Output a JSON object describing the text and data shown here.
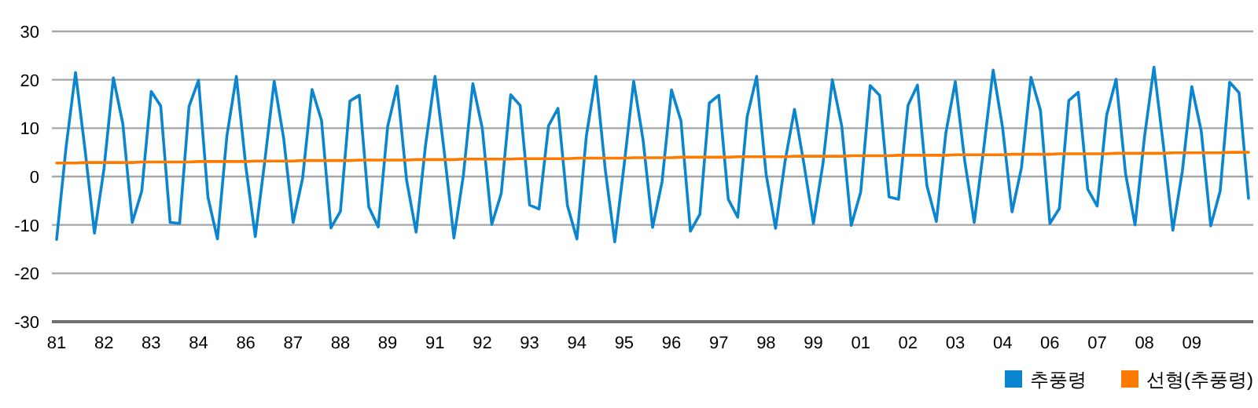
{
  "chart_data": {
    "type": "line",
    "categories": [
      "81",
      null,
      null,
      null,
      null,
      "82",
      null,
      null,
      null,
      null,
      "83",
      null,
      null,
      null,
      null,
      "84",
      null,
      null,
      null,
      null,
      "86",
      null,
      null,
      null,
      null,
      "87",
      null,
      null,
      null,
      null,
      "88",
      null,
      null,
      null,
      null,
      "89",
      null,
      null,
      null,
      null,
      "91",
      null,
      null,
      null,
      null,
      "92",
      null,
      null,
      null,
      null,
      "93",
      null,
      null,
      null,
      null,
      "94",
      null,
      null,
      null,
      null,
      "95",
      null,
      null,
      null,
      null,
      "96",
      null,
      null,
      null,
      null,
      "97",
      null,
      null,
      null,
      null,
      "98",
      null,
      null,
      null,
      null,
      "99",
      null,
      null,
      null,
      null,
      "01",
      null,
      null,
      null,
      null,
      "02",
      null,
      null,
      null,
      null,
      "03",
      null,
      null,
      null,
      null,
      "04",
      null,
      null,
      null,
      null,
      "06",
      null,
      null,
      null,
      null,
      "07",
      null,
      null,
      null,
      null,
      "08",
      null,
      null,
      null,
      null,
      "09",
      null,
      null,
      null,
      null,
      null,
      null
    ],
    "ylim": [
      -30,
      30
    ],
    "yticks": [
      -30,
      -20,
      -10,
      0,
      10,
      20,
      30
    ],
    "grid": "y",
    "legend": "bottom right",
    "series": [
      {
        "name": "추풍령",
        "color": "#0a86d0",
        "values": [
          -13.0,
          6.1,
          21.5,
          5.6,
          -11.7,
          1.5,
          20.4,
          10.9,
          -9.5,
          -3.0,
          17.6,
          14.6,
          -9.5,
          -9.7,
          14.5,
          19.9,
          -4.3,
          -12.9,
          8.4,
          20.7,
          2.1,
          -12.4,
          3.1,
          19.7,
          7.9,
          -9.5,
          -0.4,
          18.0,
          11.6,
          -10.6,
          -7.2,
          15.6,
          16.8,
          -6.3,
          -10.4,
          10.4,
          18.7,
          -0.8,
          -11.5,
          6.5,
          20.7,
          4.7,
          -12.7,
          0.3,
          19.2,
          9.9,
          -9.9,
          -3.5,
          16.9,
          14.7,
          -5.9,
          -6.7,
          10.5,
          14.1,
          -6.0,
          -12.9,
          8.4,
          20.7,
          1.4,
          -13.5,
          2.5,
          19.7,
          7.5,
          -10.5,
          -1.1,
          17.9,
          11.5,
          -11.3,
          -7.8,
          15.2,
          16.8,
          -4.7,
          -8.4,
          12.4,
          20.7,
          0.5,
          -10.7,
          3.1,
          13.9,
          2.6,
          -9.7,
          2.5,
          20.0,
          10.4,
          -10.1,
          -3.2,
          18.8,
          16.8,
          -4.2,
          -4.7,
          14.7,
          18.9,
          -1.9,
          -9.3,
          9.0,
          19.6,
          3.2,
          -9.5,
          5.7,
          22.0,
          10.1,
          -7.3,
          1.9,
          20.5,
          13.7,
          -9.7,
          -6.6,
          15.7,
          17.4,
          -2.6,
          -6.1,
          12.7,
          20.1,
          0.6,
          -10.0,
          8.2,
          22.6,
          6.4,
          -11.1,
          1.1,
          18.6,
          9.4,
          -10.2,
          -3.0,
          19.5,
          17.3,
          -4.5
        ]
      },
      {
        "name": "선형(추풍령)",
        "color": "#ff7b00",
        "values": [
          2.8,
          2.8,
          2.8,
          2.9,
          2.9,
          2.9,
          2.9,
          2.9,
          2.9,
          3.0,
          3.0,
          3.0,
          3.0,
          3.0,
          3.0,
          3.1,
          3.1,
          3.1,
          3.1,
          3.1,
          3.1,
          3.2,
          3.2,
          3.2,
          3.2,
          3.2,
          3.3,
          3.3,
          3.3,
          3.3,
          3.3,
          3.3,
          3.4,
          3.4,
          3.4,
          3.4,
          3.4,
          3.4,
          3.5,
          3.5,
          3.5,
          3.5,
          3.5,
          3.6,
          3.6,
          3.6,
          3.6,
          3.6,
          3.6,
          3.7,
          3.7,
          3.7,
          3.7,
          3.7,
          3.7,
          3.8,
          3.8,
          3.8,
          3.8,
          3.8,
          3.8,
          3.9,
          3.9,
          3.9,
          3.9,
          3.9,
          4.0,
          4.0,
          4.0,
          4.0,
          4.0,
          4.0,
          4.1,
          4.1,
          4.1,
          4.1,
          4.1,
          4.1,
          4.2,
          4.2,
          4.2,
          4.2,
          4.2,
          4.2,
          4.3,
          4.3,
          4.3,
          4.3,
          4.3,
          4.4,
          4.4,
          4.4,
          4.4,
          4.4,
          4.4,
          4.5,
          4.5,
          4.5,
          4.5,
          4.5,
          4.5,
          4.6,
          4.6,
          4.6,
          4.6,
          4.6,
          4.7,
          4.7,
          4.7,
          4.7,
          4.7,
          4.7,
          4.8,
          4.8,
          4.8,
          4.8,
          4.8,
          4.8,
          4.9,
          4.9,
          4.9,
          4.9,
          4.9,
          4.9,
          5.0,
          5.0,
          5.0
        ]
      }
    ]
  }
}
